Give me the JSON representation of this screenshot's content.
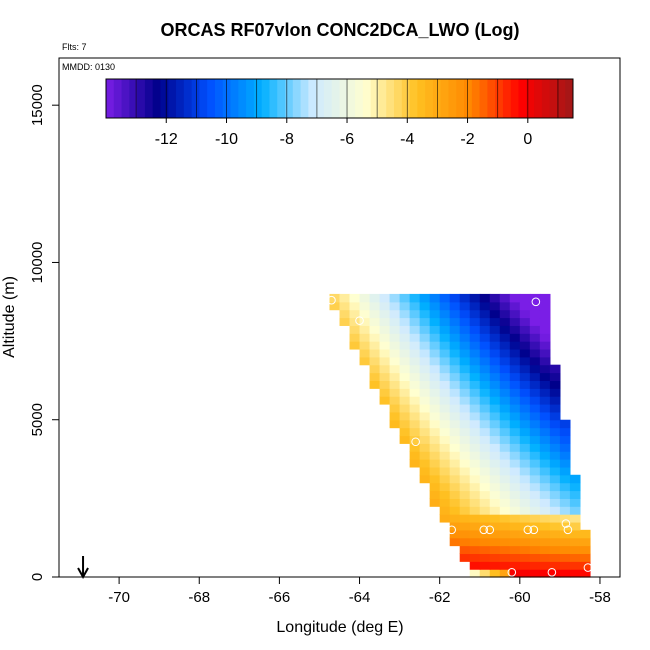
{
  "chart_data": {
    "type": "heatmap",
    "title": "ORCAS RF07vlon CONC2DCA_LWO (Log)",
    "flights_label": "Flts: 7",
    "date_label": "MMDD: 0130",
    "xlabel": "Longitude (deg E)",
    "ylabel": "Altitude (m)",
    "xlim": [
      -71.5,
      -57.5
    ],
    "ylim": [
      0,
      16500
    ],
    "x_ticks": [
      -70,
      -68,
      -66,
      -64,
      -62,
      -60,
      -58
    ],
    "x_tick_labels": [
      "-70",
      "-68",
      "-66",
      "-64",
      "-62",
      "-60",
      "-58"
    ],
    "y_ticks": [
      0,
      5000,
      10000,
      15000
    ],
    "y_tick_labels": [
      "0",
      "5000",
      "10000",
      "15000"
    ],
    "colorbar": {
      "range": [
        -14,
        1.5
      ],
      "ticks": [
        -12,
        -10,
        -8,
        -6,
        -4,
        -2,
        0
      ],
      "tick_labels": [
        "-12",
        "-10",
        "-8",
        "-6",
        "-4",
        "-2",
        "0"
      ],
      "colors": [
        "#7a1ee6",
        "#00008b",
        "#0050ff",
        "#00b0ff",
        "#cfeaff",
        "#ffffd0",
        "#ffc020",
        "#ff8800",
        "#ff0000",
        "#a01818"
      ]
    },
    "field": {
      "description_cells_x_step_deg": 0.25,
      "description_cells_y_step_m": 250,
      "top_altitude": 8900,
      "left_edge": [
        [
          8900,
          -64.9
        ],
        [
          0,
          -61.3
        ]
      ],
      "right_edge": [
        [
          8900,
          -59.5
        ],
        [
          7000,
          -59.3
        ],
        [
          5000,
          -59.0
        ],
        [
          3700,
          -58.8
        ],
        [
          1500,
          -58.5
        ],
        [
          0,
          -58.3
        ]
      ],
      "value_model": "log10 concentration decreasing from ~ -2 on lower-left edge to ~ -13 at upper right; high values (~0) near surface",
      "samples": [
        {
          "lon": -64.2,
          "alt": 8800,
          "value": -3.5
        },
        {
          "lon": -63.0,
          "alt": 8000,
          "value": -6
        },
        {
          "lon": -61.0,
          "alt": 8000,
          "value": -10
        },
        {
          "lon": -59.8,
          "alt": 8500,
          "value": -13
        },
        {
          "lon": -61.5,
          "alt": 4000,
          "value": -5
        },
        {
          "lon": -60.0,
          "alt": 4500,
          "value": -8
        },
        {
          "lon": -60.5,
          "alt": 2500,
          "value": -4
        },
        {
          "lon": -60.0,
          "alt": 1000,
          "value": -1
        },
        {
          "lon": -59.2,
          "alt": 300,
          "value": 0.5
        }
      ]
    },
    "points": [
      {
        "lon": -64.7,
        "alt": 8800
      },
      {
        "lon": -64.0,
        "alt": 8150
      },
      {
        "lon": -59.6,
        "alt": 8750
      },
      {
        "lon": -62.6,
        "alt": 4300
      },
      {
        "lon": -61.7,
        "alt": 1500
      },
      {
        "lon": -60.9,
        "alt": 1500
      },
      {
        "lon": -60.75,
        "alt": 1500
      },
      {
        "lon": -59.8,
        "alt": 1500
      },
      {
        "lon": -59.65,
        "alt": 1500
      },
      {
        "lon": -58.85,
        "alt": 1700
      },
      {
        "lon": -58.8,
        "alt": 1500
      },
      {
        "lon": -60.2,
        "alt": 150
      },
      {
        "lon": -59.2,
        "alt": 150
      },
      {
        "lon": -58.3,
        "alt": 300
      }
    ],
    "marker": {
      "lon": -70.9,
      "symbol": "arrow-down"
    }
  }
}
